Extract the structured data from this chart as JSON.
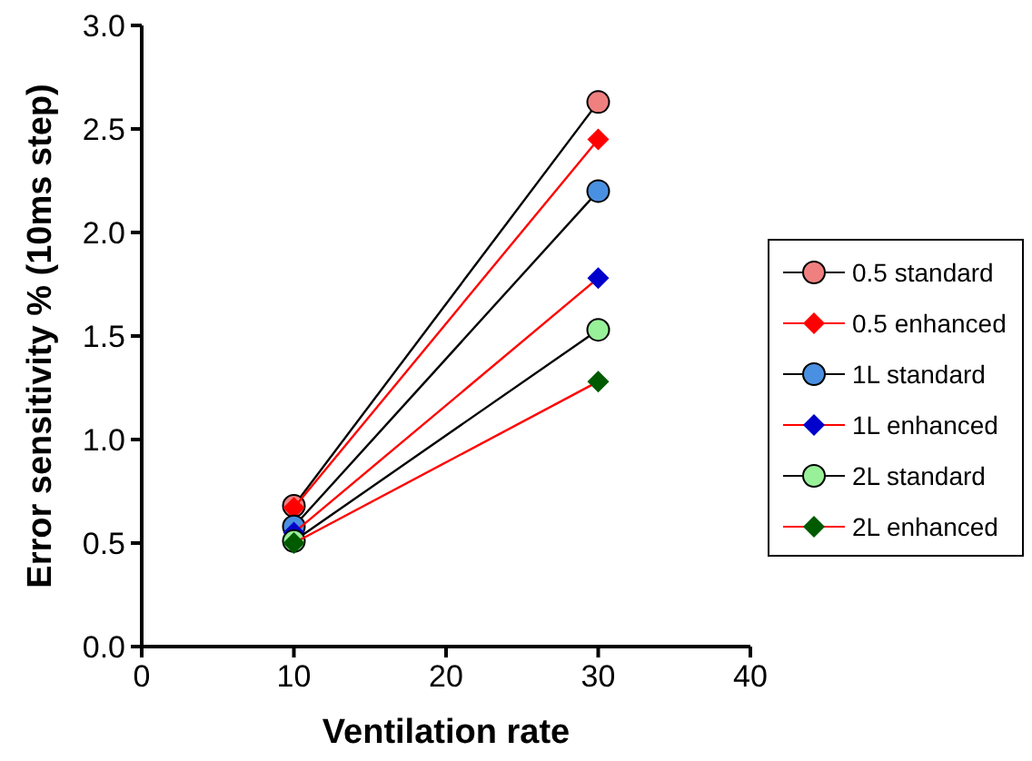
{
  "chart_data": {
    "type": "line",
    "xlabel": "Ventilation rate",
    "ylabel": "Error sensitivity % (10ms step)",
    "x": [
      10,
      30
    ],
    "xlim": [
      0,
      40
    ],
    "xticks": [
      0,
      10,
      20,
      30,
      40
    ],
    "ylim": [
      0,
      3.0
    ],
    "yticks": [
      {
        "value": 0,
        "label": "0.0"
      },
      {
        "value": 0.5,
        "label": "0.5"
      },
      {
        "value": 1,
        "label": "1.0"
      },
      {
        "value": 1.5,
        "label": "1.5"
      },
      {
        "value": 2,
        "label": "2.0"
      },
      {
        "value": 2.5,
        "label": "2.5"
      },
      {
        "value": 3,
        "label": "3.0"
      }
    ],
    "grid": false,
    "legend": "right",
    "series": [
      {
        "name": "0.5 standard",
        "color": "#f08080",
        "marker": "circle",
        "values": [
          0.68,
          2.63
        ]
      },
      {
        "name": "0.5 enhanced",
        "color": "#ff0000",
        "marker": "diamond",
        "values": [
          0.67,
          2.45
        ]
      },
      {
        "name": "1L standard",
        "color": "#4a90e2",
        "marker": "circle",
        "values": [
          0.58,
          2.2
        ]
      },
      {
        "name": "1L enhanced",
        "color": "#0000cc",
        "marker": "diamond",
        "values": [
          0.55,
          1.78
        ]
      },
      {
        "name": "2L standard",
        "color": "#98f098",
        "marker": "circle",
        "values": [
          0.51,
          1.53
        ]
      },
      {
        "name": "2L enhanced",
        "color": "#005a00",
        "marker": "diamond",
        "values": [
          0.5,
          1.28
        ]
      }
    ]
  }
}
